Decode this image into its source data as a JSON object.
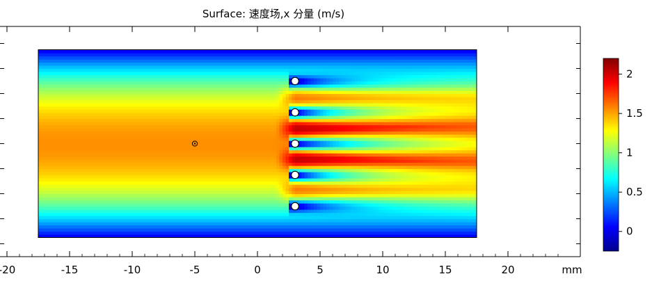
{
  "chart_data": {
    "type": "heatmap",
    "title": "Surface: 速度场,x 分量 (m/s)",
    "x_unit": "mm",
    "x_ticks": [
      -20,
      -15,
      -10,
      -5,
      0,
      5,
      10,
      15,
      20
    ],
    "xlim": [
      -20.6,
      25.6
    ],
    "domain_x": [
      -17.5,
      17.5
    ],
    "domain_y": [
      -7.5,
      7.5
    ],
    "ylim": [
      -8.5,
      9.5
    ],
    "y_tick_labels_shown": false,
    "obstacles": [
      {
        "x": 3,
        "y": 5
      },
      {
        "x": 3,
        "y": 2.5
      },
      {
        "x": 3,
        "y": 0
      },
      {
        "x": 3,
        "y": -2.5
      },
      {
        "x": 3,
        "y": -5
      }
    ],
    "point_marker": {
      "x": -5,
      "y": 0
    },
    "colorbar": {
      "colormap": "jet",
      "range": [
        -0.25,
        2.2
      ],
      "ticks": [
        0,
        0.5,
        1,
        1.5,
        2
      ],
      "tick_labels": [
        "0",
        "0.5",
        "1",
        "1.5",
        "2"
      ]
    },
    "field_description": "Inlet x-velocity ~1.5 m/s at centerline, near 0 at walls; five cylinders at x=3 mm produce wakes, jets between cylinders reach ~2 m/s."
  },
  "colors": {
    "frame": "#000000",
    "background": "#ffffff"
  }
}
